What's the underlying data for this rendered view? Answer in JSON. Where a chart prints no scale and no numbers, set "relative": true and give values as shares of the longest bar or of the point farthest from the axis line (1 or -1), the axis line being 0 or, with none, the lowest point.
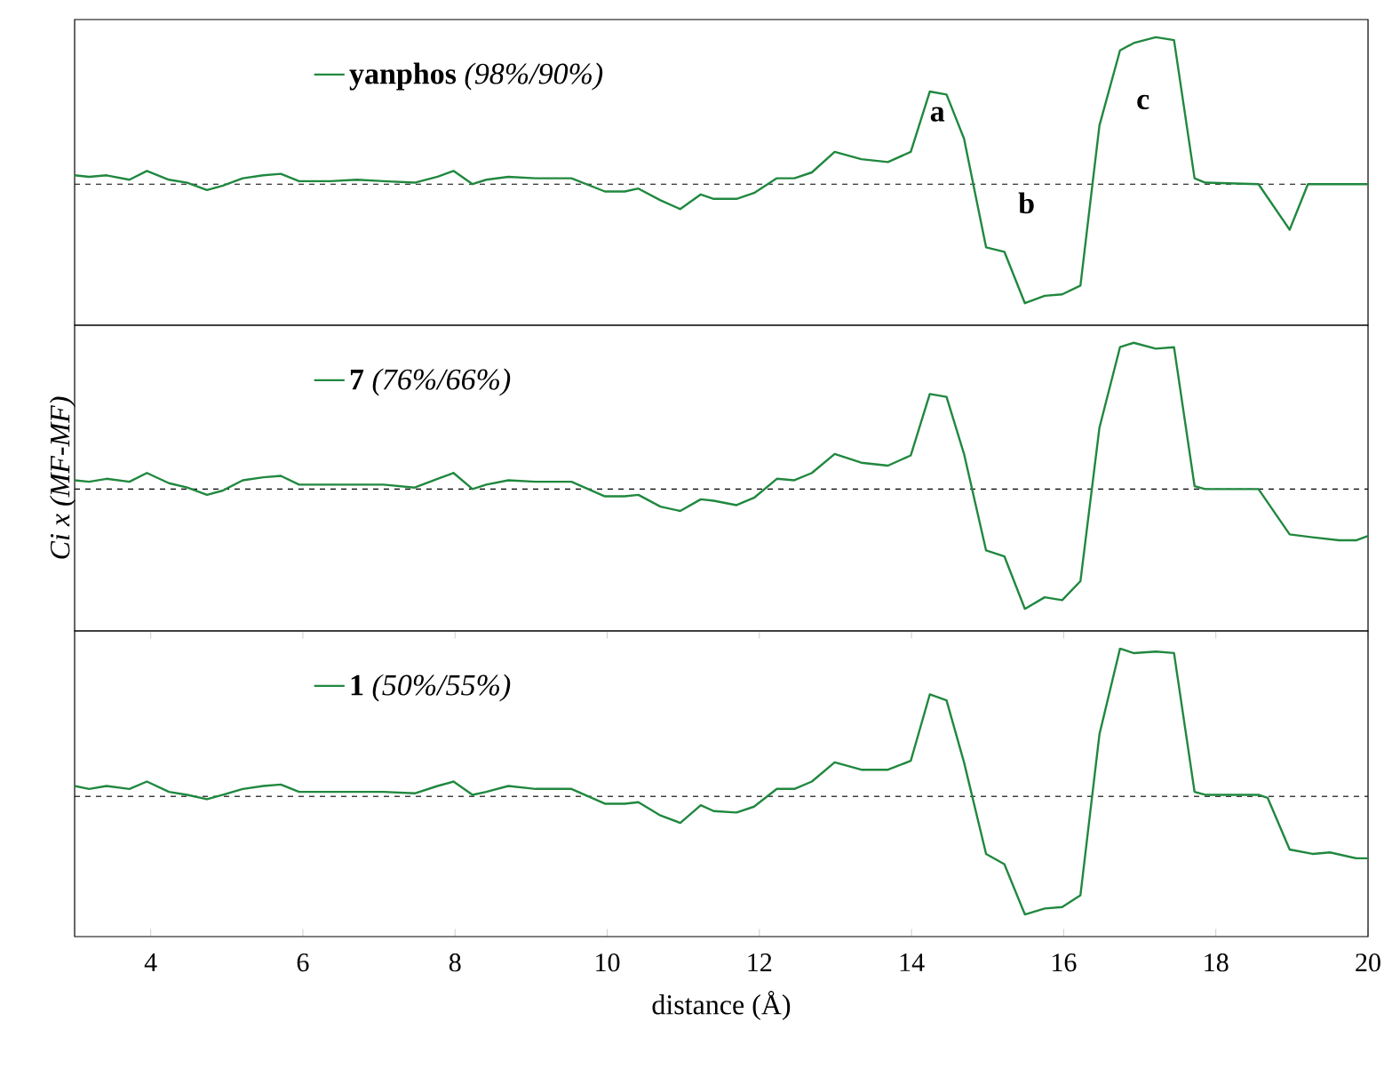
{
  "chart_data": [
    {
      "type": "line",
      "relative": true,
      "xlim": [
        3,
        20
      ],
      "tick_labels": false,
      "legend": "top left",
      "ref_lines": [
        {
          "axis": "y",
          "value": 0,
          "color": "#000000",
          "line_style": "dashed"
        }
      ],
      "annotations": [
        "a",
        "b",
        "c"
      ],
      "series": [
        {
          "name": "**yanphos** *(98%/90%)*",
          "color": "#20883f",
          "x": [
            3.0,
            3.19,
            3.42,
            3.72,
            3.95,
            4.24,
            4.48,
            4.74,
            4.95,
            5.21,
            5.48,
            5.71,
            5.95,
            6.36,
            6.71,
            7.06,
            7.47,
            7.77,
            7.98,
            8.23,
            8.41,
            8.7,
            9.06,
            9.53,
            9.97,
            10.23,
            10.41,
            10.7,
            10.96,
            11.23,
            11.4,
            11.7,
            11.93,
            12.23,
            12.46,
            12.69,
            12.99,
            13.34,
            13.69,
            13.99,
            14.24,
            14.46,
            14.69,
            14.98,
            15.22,
            15.49,
            15.75,
            15.98,
            16.22,
            16.47,
            16.74,
            16.92,
            17.21,
            17.45,
            17.72,
            17.86,
            18.56,
            18.97,
            19.21,
            20
          ],
          "values": [
            0.06,
            0.05,
            0.06,
            0.03,
            0.09,
            0.03,
            0.01,
            -0.04,
            -0.01,
            0.04,
            0.06,
            0.07,
            0.02,
            0.02,
            0.03,
            0.02,
            0.01,
            0.05,
            0.09,
            0,
            0.03,
            0.05,
            0.04,
            0.04,
            -0.05,
            -0.05,
            -0.03,
            -0.11,
            -0.17,
            -0.07,
            -0.1,
            -0.1,
            -0.06,
            0.04,
            0.04,
            0.08,
            0.22,
            0.17,
            0.15,
            0.22,
            0.63,
            0.61,
            0.31,
            -0.43,
            -0.46,
            -0.81,
            -0.76,
            -0.75,
            -0.69,
            0.4,
            0.91,
            0.96,
            1.0,
            0.98,
            0.04,
            0.01,
            0,
            -0.31,
            0,
            0
          ]
        }
      ]
    },
    {
      "type": "line",
      "relative": true,
      "xlim": [
        3,
        20
      ],
      "tick_labels": false,
      "legend": "top left",
      "ylabel": "Ci x (MF-MF)",
      "ref_lines": [
        {
          "axis": "y",
          "value": 0,
          "color": "#000000",
          "line_style": "dashed"
        }
      ],
      "series": [
        {
          "name": "**7** *(76%/66%)*",
          "color": "#20883f",
          "x": [
            3.0,
            3.19,
            3.42,
            3.72,
            3.95,
            4.24,
            4.48,
            4.74,
            4.95,
            5.21,
            5.48,
            5.71,
            5.95,
            6.36,
            6.71,
            7.06,
            7.47,
            7.77,
            7.98,
            8.23,
            8.41,
            8.7,
            9.06,
            9.53,
            9.97,
            10.23,
            10.41,
            10.7,
            10.96,
            11.23,
            11.4,
            11.7,
            11.93,
            12.23,
            12.46,
            12.69,
            12.99,
            13.34,
            13.69,
            13.99,
            14.24,
            14.46,
            14.69,
            14.98,
            15.22,
            15.49,
            15.75,
            15.98,
            16.22,
            16.47,
            16.74,
            16.92,
            17.21,
            17.45,
            17.72,
            17.86,
            18.56,
            18.97,
            19.27,
            19.62,
            19.85,
            20
          ],
          "values": [
            0.06,
            0.05,
            0.07,
            0.05,
            0.11,
            0.04,
            0.01,
            -0.04,
            -0.01,
            0.06,
            0.08,
            0.09,
            0.03,
            0.03,
            0.03,
            0.03,
            0.01,
            0.07,
            0.11,
            0,
            0.03,
            0.06,
            0.05,
            0.05,
            -0.05,
            -0.05,
            -0.04,
            -0.12,
            -0.15,
            -0.07,
            -0.08,
            -0.11,
            -0.06,
            0.07,
            0.06,
            0.11,
            0.24,
            0.18,
            0.16,
            0.23,
            0.65,
            0.63,
            0.24,
            -0.42,
            -0.46,
            -0.82,
            -0.74,
            -0.76,
            -0.63,
            0.42,
            0.97,
            1.0,
            0.96,
            0.97,
            0.02,
            0,
            0,
            -0.31,
            -0.33,
            -0.35,
            -0.35,
            -0.32
          ]
        }
      ]
    },
    {
      "type": "line",
      "relative": true,
      "xlim": [
        3,
        20
      ],
      "xticks": [
        4,
        6,
        8,
        10,
        12,
        14,
        16,
        18,
        20
      ],
      "tick_labels": "x",
      "legend": "top left",
      "xlabel": "distance (Å)",
      "ref_lines": [
        {
          "axis": "y",
          "value": 0,
          "color": "#000000",
          "line_style": "dashed"
        }
      ],
      "series": [
        {
          "name": "**1** *(50%/55%)*",
          "color": "#20883f",
          "x": [
            3.0,
            3.19,
            3.42,
            3.72,
            3.95,
            4.24,
            4.48,
            4.74,
            4.95,
            5.21,
            5.48,
            5.71,
            5.95,
            6.36,
            6.71,
            7.06,
            7.47,
            7.77,
            7.98,
            8.23,
            8.41,
            8.7,
            9.06,
            9.53,
            9.97,
            10.23,
            10.41,
            10.7,
            10.96,
            11.23,
            11.4,
            11.7,
            11.93,
            12.23,
            12.46,
            12.69,
            12.99,
            13.34,
            13.69,
            13.99,
            14.24,
            14.46,
            14.69,
            14.98,
            15.22,
            15.49,
            15.75,
            15.98,
            16.22,
            16.47,
            16.74,
            16.92,
            17.21,
            17.45,
            17.72,
            17.86,
            18.56,
            18.68,
            18.97,
            19.27,
            19.5,
            19.85,
            20
          ],
          "values": [
            0.07,
            0.05,
            0.07,
            0.05,
            0.1,
            0.03,
            0.01,
            -0.02,
            0.01,
            0.05,
            0.07,
            0.08,
            0.03,
            0.03,
            0.03,
            0.03,
            0.02,
            0.07,
            0.1,
            0.01,
            0.03,
            0.07,
            0.05,
            0.05,
            -0.05,
            -0.05,
            -0.04,
            -0.13,
            -0.18,
            -0.06,
            -0.1,
            -0.11,
            -0.07,
            0.05,
            0.05,
            0.1,
            0.23,
            0.18,
            0.18,
            0.24,
            0.69,
            0.65,
            0.23,
            -0.39,
            -0.46,
            -0.8,
            -0.76,
            -0.75,
            -0.67,
            0.42,
            1.0,
            0.97,
            0.98,
            0.97,
            0.03,
            0.01,
            0.01,
            -0.01,
            -0.36,
            -0.39,
            -0.38,
            -0.42,
            -0.42
          ]
        }
      ]
    }
  ]
}
